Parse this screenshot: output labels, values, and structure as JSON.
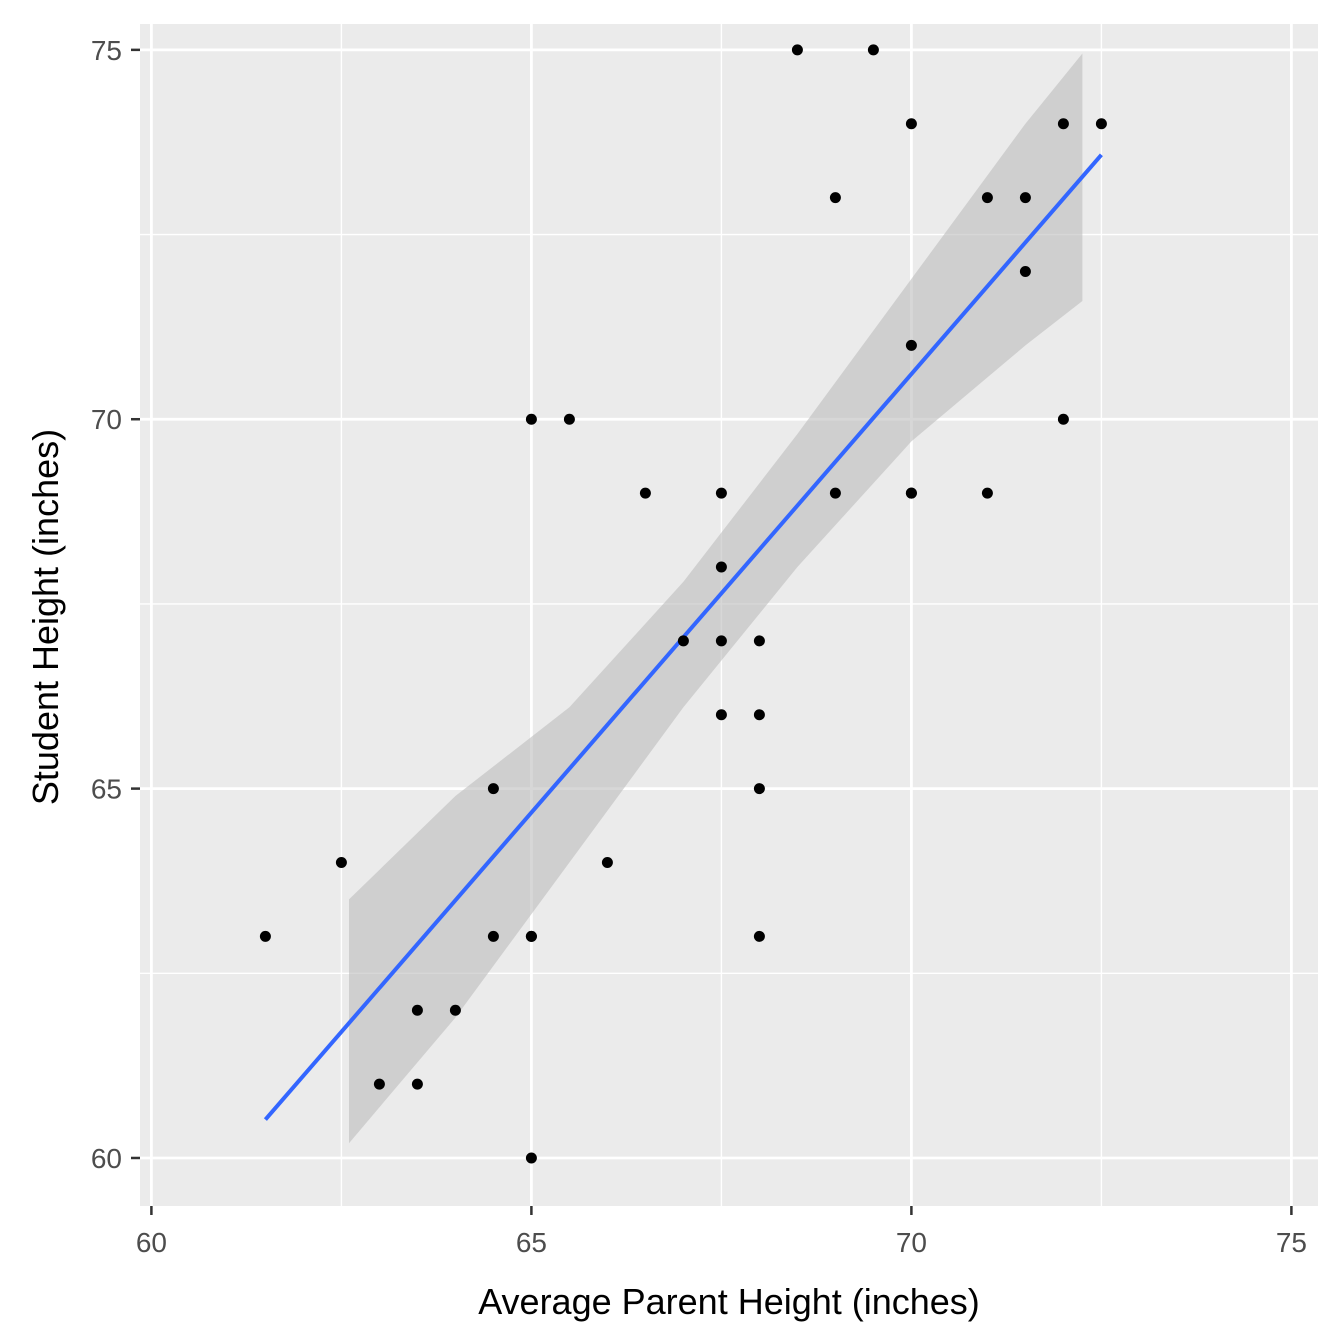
{
  "chart_data": {
    "type": "scatter",
    "title": "",
    "xlabel": "Average Parent Height (inches)",
    "ylabel": "Student Height (inches)",
    "xlim": [
      59.85,
      75.35
    ],
    "ylim": [
      59.35,
      75.35
    ],
    "x_ticks": [
      60,
      65,
      70,
      75
    ],
    "x_tick_labels": [
      "60",
      "65",
      "70",
      "75"
    ],
    "y_ticks": [
      60,
      65,
      70,
      75
    ],
    "y_tick_labels": [
      "60",
      "65",
      "70",
      "75"
    ],
    "grid": true,
    "legend": "none",
    "points": [
      {
        "x": 61.5,
        "y": 63
      },
      {
        "x": 62.5,
        "y": 64
      },
      {
        "x": 63,
        "y": 61
      },
      {
        "x": 63.5,
        "y": 62
      },
      {
        "x": 63.5,
        "y": 61
      },
      {
        "x": 64,
        "y": 62
      },
      {
        "x": 64.5,
        "y": 65
      },
      {
        "x": 64.5,
        "y": 63
      },
      {
        "x": 65,
        "y": 70
      },
      {
        "x": 65,
        "y": 63
      },
      {
        "x": 65,
        "y": 63
      },
      {
        "x": 65,
        "y": 60
      },
      {
        "x": 65.5,
        "y": 70
      },
      {
        "x": 66,
        "y": 64
      },
      {
        "x": 66.5,
        "y": 69
      },
      {
        "x": 67,
        "y": 67
      },
      {
        "x": 67.5,
        "y": 69
      },
      {
        "x": 67.5,
        "y": 68
      },
      {
        "x": 67.5,
        "y": 67
      },
      {
        "x": 67.5,
        "y": 66
      },
      {
        "x": 68,
        "y": 67
      },
      {
        "x": 68,
        "y": 66
      },
      {
        "x": 68,
        "y": 65
      },
      {
        "x": 68,
        "y": 63
      },
      {
        "x": 68.5,
        "y": 75
      },
      {
        "x": 69,
        "y": 73
      },
      {
        "x": 69,
        "y": 69
      },
      {
        "x": 69.5,
        "y": 75
      },
      {
        "x": 70,
        "y": 74
      },
      {
        "x": 70,
        "y": 71
      },
      {
        "x": 70,
        "y": 69
      },
      {
        "x": 70,
        "y": 69
      },
      {
        "x": 71,
        "y": 73
      },
      {
        "x": 71,
        "y": 69
      },
      {
        "x": 71.5,
        "y": 73
      },
      {
        "x": 71.5,
        "y": 72
      },
      {
        "x": 72,
        "y": 74
      },
      {
        "x": 72,
        "y": 70
      },
      {
        "x": 72.5,
        "y": 74
      }
    ],
    "fit_line": {
      "method": "linear",
      "x": [
        61.5,
        72.5
      ],
      "y": [
        60.52,
        73.58
      ]
    },
    "confidence_band": {
      "x": [
        62.6,
        64.0,
        65.5,
        67.0,
        68.5,
        70.0,
        71.5,
        72.25
      ],
      "lower": [
        60.2,
        61.9,
        64.0,
        66.1,
        68.0,
        69.7,
        71.0,
        71.6
      ],
      "upper": [
        63.5,
        64.9,
        66.1,
        67.8,
        69.8,
        71.9,
        74.0,
        74.95
      ]
    },
    "colors": {
      "panel": "#ebebeb",
      "grid_major": "#ffffff",
      "points": "#000000",
      "fit_line": "#3366ff",
      "band": "#bdbdbd",
      "tick_label": "#4d4d4d",
      "tick_mark": "#333333"
    }
  }
}
